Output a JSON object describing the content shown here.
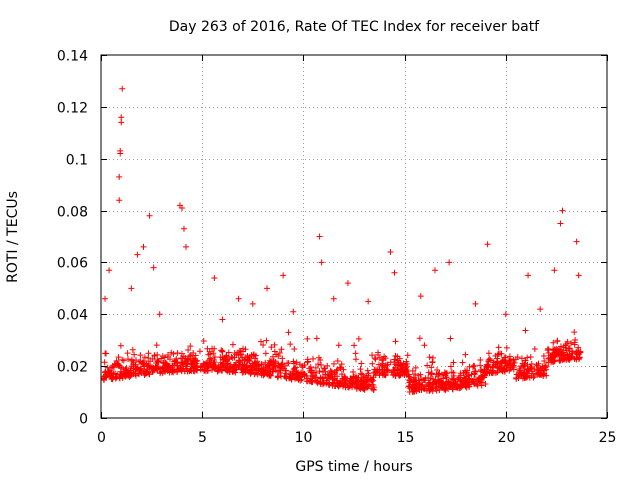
{
  "chart_data": {
    "type": "scatter",
    "title": "Day 263 of 2016, Rate Of TEC Index for receiver batf",
    "xlabel": "GPS time / hours",
    "ylabel": "ROTI / TECUs",
    "xlim": [
      0,
      25
    ],
    "ylim": [
      0,
      0.14
    ],
    "xticks": [
      0,
      5,
      10,
      15,
      20,
      25
    ],
    "xtick_labels": [
      "0",
      "5",
      "10",
      "15",
      "20",
      "25"
    ],
    "yticks": [
      0,
      0.02,
      0.04,
      0.06,
      0.08,
      0.1,
      0.12,
      0.14
    ],
    "ytick_labels": [
      "0",
      "0.02",
      "0.04",
      "0.06",
      "0.08",
      "0.1",
      "0.12",
      "0.14"
    ],
    "grid": true,
    "marker": "+",
    "color": "#ff0000",
    "series": [
      {
        "name": "ROTI",
        "description": "dense scatter of roughly 0.005-0.06 TECU across 0-24 h with spikes",
        "x": [
          0.2,
          0.4,
          0.9,
          0.9,
          0.95,
          0.95,
          1.0,
          1.0,
          1.05,
          1.5,
          1.8,
          2.1,
          2.4,
          2.6,
          3.9,
          4.0,
          4.1,
          4.2,
          5.6,
          6.8,
          8.2,
          9.0,
          10.8,
          10.9,
          12.2,
          14.3,
          14.5,
          16.5,
          17.2,
          19.1,
          21.1,
          22.4,
          22.7,
          22.8,
          23.5,
          23.6,
          2.9,
          6.0,
          7.5,
          9.5,
          11.5,
          13.2,
          15.8,
          18.5,
          20.0,
          21.7
        ],
        "y": [
          0.046,
          0.057,
          0.084,
          0.093,
          0.102,
          0.103,
          0.114,
          0.116,
          0.127,
          0.05,
          0.063,
          0.066,
          0.078,
          0.058,
          0.082,
          0.081,
          0.073,
          0.066,
          0.054,
          0.046,
          0.05,
          0.055,
          0.07,
          0.06,
          0.052,
          0.064,
          0.056,
          0.057,
          0.06,
          0.067,
          0.055,
          0.057,
          0.075,
          0.08,
          0.068,
          0.055,
          0.04,
          0.038,
          0.044,
          0.041,
          0.046,
          0.045,
          0.047,
          0.044,
          0.04,
          0.042
        ]
      }
    ]
  }
}
